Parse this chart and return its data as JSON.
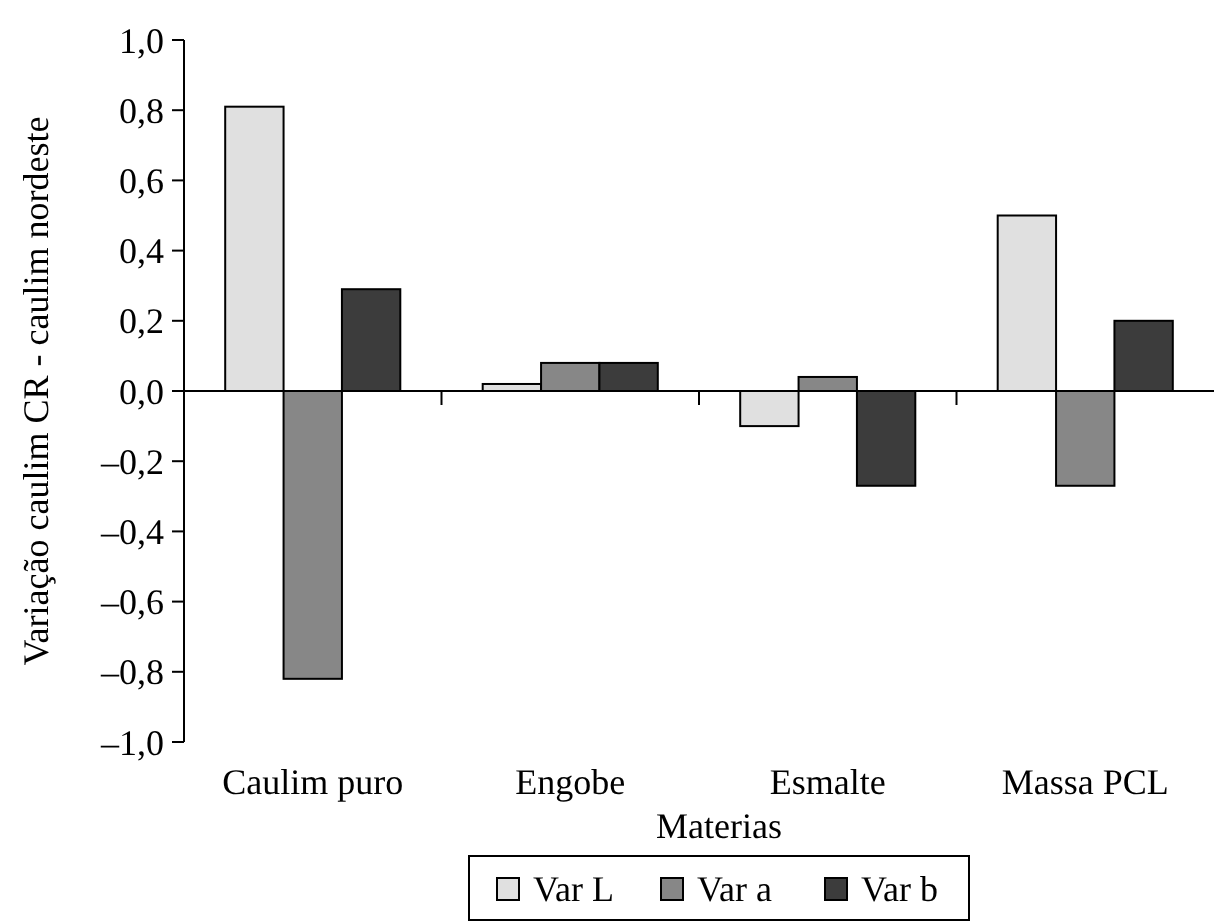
{
  "chart_data": {
    "type": "bar",
    "xlabel": "Materias",
    "ylabel": "Variação caulim CR - caulim nordeste",
    "categories": [
      "Caulim puro",
      "Engobe",
      "Esmalte",
      "Massa PCL"
    ],
    "series": [
      {
        "name": "Var L",
        "color": "#e0e0e0",
        "values": [
          0.81,
          0.02,
          -0.1,
          0.5
        ]
      },
      {
        "name": "Var a",
        "color": "#878787",
        "values": [
          -0.82,
          0.08,
          0.04,
          -0.27
        ]
      },
      {
        "name": "Var b",
        "color": "#3c3c3c",
        "values": [
          0.29,
          0.08,
          -0.27,
          0.2
        ]
      }
    ],
    "ylim": [
      -1,
      1
    ],
    "yticks": [
      {
        "value": -1,
        "label": "–1,0"
      },
      {
        "value": -0.8,
        "label": "–0,8"
      },
      {
        "value": -0.6,
        "label": "–0,6"
      },
      {
        "value": -0.4,
        "label": "–0,4"
      },
      {
        "value": -0.2,
        "label": "–0,2"
      },
      {
        "value": 0,
        "label": "0,0"
      },
      {
        "value": 0.2,
        "label": "0,2"
      },
      {
        "value": 0.4,
        "label": "0,4"
      },
      {
        "value": 0.6,
        "label": "0,6"
      },
      {
        "value": 0.8,
        "label": "0,8"
      },
      {
        "value": 1,
        "label": "1,0"
      }
    ],
    "legend": "bottom"
  }
}
